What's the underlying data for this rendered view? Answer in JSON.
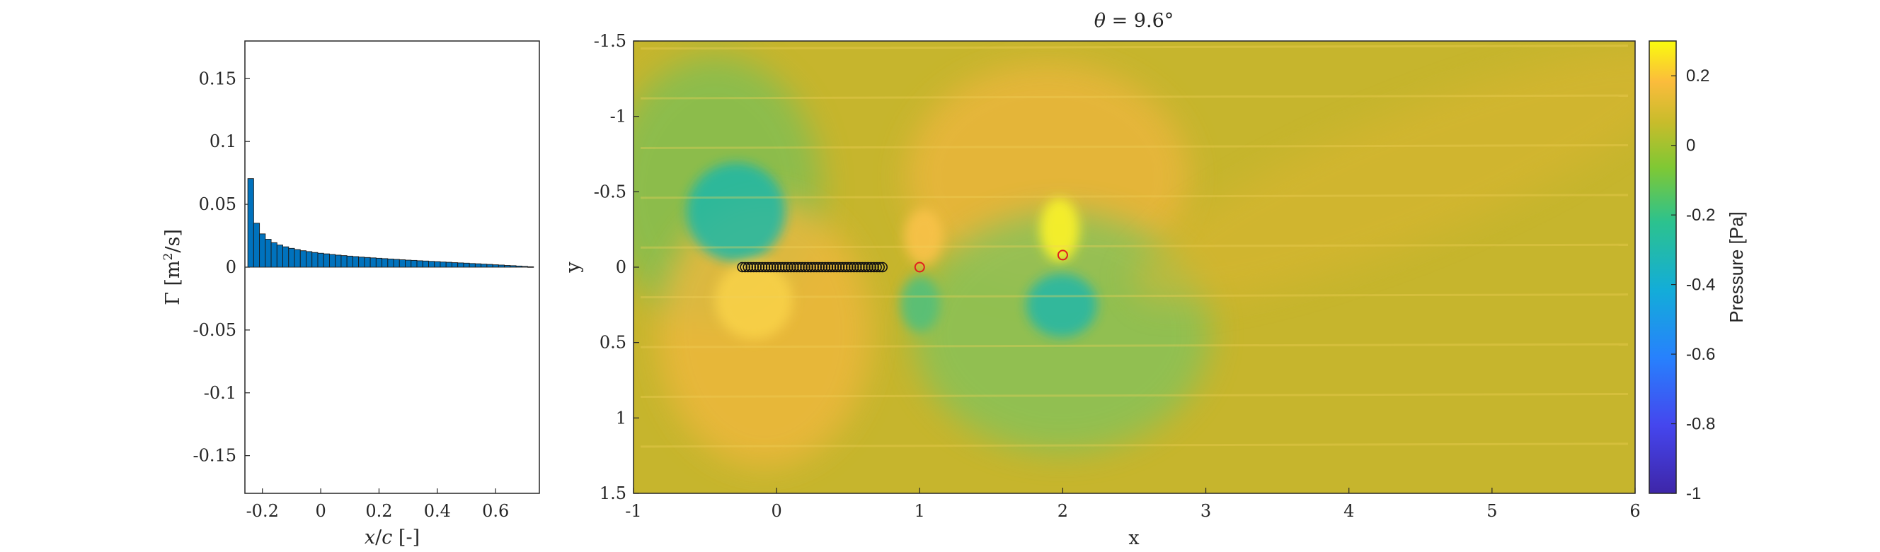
{
  "chart_data": [
    {
      "type": "bar",
      "xlabel": "x/c [-]",
      "ylabel": "Γ [m²/s]",
      "xlim": [
        -0.26,
        0.75
      ],
      "ylim": [
        -0.18,
        0.18
      ],
      "xticks": [
        "-0.2",
        "0",
        "0.2",
        "0.4",
        "0.6"
      ],
      "xtick_values": [
        -0.2,
        0,
        0.2,
        0.4,
        0.6
      ],
      "yticks": [
        "0.15",
        "0.1",
        "0.05",
        "0",
        "-0.05",
        "-0.1",
        "-0.15"
      ],
      "ytick_values": [
        0.15,
        0.1,
        0.05,
        0,
        -0.05,
        -0.1,
        -0.15
      ],
      "bar_color": "#0072bd",
      "x": [
        -0.24,
        -0.22,
        -0.2,
        -0.18,
        -0.16,
        -0.14,
        -0.12,
        -0.1,
        -0.08,
        -0.06,
        -0.04,
        -0.02,
        0.0,
        0.02,
        0.04,
        0.06,
        0.08,
        0.1,
        0.12,
        0.14,
        0.16,
        0.18,
        0.2,
        0.22,
        0.24,
        0.26,
        0.28,
        0.3,
        0.32,
        0.34,
        0.36,
        0.38,
        0.4,
        0.42,
        0.44,
        0.46,
        0.48,
        0.5,
        0.52,
        0.54,
        0.56,
        0.58,
        0.6,
        0.62,
        0.64,
        0.66,
        0.68,
        0.7,
        0.72
      ],
      "values": [
        0.0705,
        0.035,
        0.0265,
        0.0222,
        0.0195,
        0.0176,
        0.0162,
        0.015,
        0.014,
        0.0131,
        0.0124,
        0.0117,
        0.0111,
        0.0106,
        0.0101,
        0.0096,
        0.0092,
        0.0088,
        0.0084,
        0.008,
        0.0077,
        0.0074,
        0.0071,
        0.0068,
        0.0065,
        0.0062,
        0.0059,
        0.0056,
        0.0054,
        0.0051,
        0.0049,
        0.0046,
        0.0044,
        0.0041,
        0.0039,
        0.0036,
        0.0034,
        0.0032,
        0.0029,
        0.0027,
        0.0024,
        0.0022,
        0.0019,
        0.0017,
        0.0014,
        0.0012,
        0.0009,
        0.0006,
        0.0003
      ]
    },
    {
      "type": "heatmap",
      "title": "θ = 9.6°",
      "xlabel": "x",
      "ylabel": "y",
      "xlim": [
        -1,
        6
      ],
      "ylim": [
        1.5,
        -1.5
      ],
      "xticks": [
        "-1",
        "0",
        "1",
        "2",
        "3",
        "4",
        "5",
        "6"
      ],
      "xtick_values": [
        -1,
        0,
        1,
        2,
        3,
        4,
        5,
        6
      ],
      "yticks": [
        "-1.5",
        "-1",
        "-0.5",
        "0",
        "0.5",
        "1",
        "1.5"
      ],
      "ytick_values": [
        -1.5,
        -1,
        -0.5,
        0,
        0.5,
        1,
        1.5
      ],
      "colorbar": {
        "label": "Pressure [Pa]",
        "limits": [
          -1,
          0.3
        ],
        "ticks": [
          "0.2",
          "0",
          "-0.2",
          "-0.4",
          "-0.6",
          "-0.8",
          "-1"
        ],
        "tick_values": [
          0.2,
          0,
          -0.2,
          -0.4,
          -0.6,
          -0.8,
          -1
        ],
        "colormap": "parula"
      },
      "background_pressure": 0.01,
      "pressure_features": [
        {
          "x": -0.2,
          "y": -0.3,
          "value": -0.35
        },
        {
          "x": -0.15,
          "y": 0.3,
          "value": 0.12
        },
        {
          "x": 1.0,
          "y": -0.2,
          "value": 0.1
        },
        {
          "x": 1.0,
          "y": 0.25,
          "value": -0.2
        },
        {
          "x": 2.0,
          "y": -0.3,
          "value": 0.25
        },
        {
          "x": 2.0,
          "y": 0.3,
          "value": -0.25
        }
      ],
      "markers_black": {
        "y": 0,
        "x": [
          -0.24,
          -0.22,
          -0.2,
          -0.18,
          -0.16,
          -0.14,
          -0.12,
          -0.1,
          -0.08,
          -0.06,
          -0.04,
          -0.02,
          0,
          0.02,
          0.04,
          0.06,
          0.08,
          0.1,
          0.12,
          0.14,
          0.16,
          0.18,
          0.2,
          0.22,
          0.24,
          0.26,
          0.28,
          0.3,
          0.32,
          0.34,
          0.36,
          0.38,
          0.4,
          0.42,
          0.44,
          0.46,
          0.48,
          0.5,
          0.52,
          0.54,
          0.56,
          0.58,
          0.6,
          0.62,
          0.64,
          0.66,
          0.68,
          0.7,
          0.72,
          0.74
        ]
      },
      "markers_red": [
        {
          "x": 1.0,
          "y": 0.0
        },
        {
          "x": 2.0,
          "y": -0.08
        }
      ]
    }
  ]
}
